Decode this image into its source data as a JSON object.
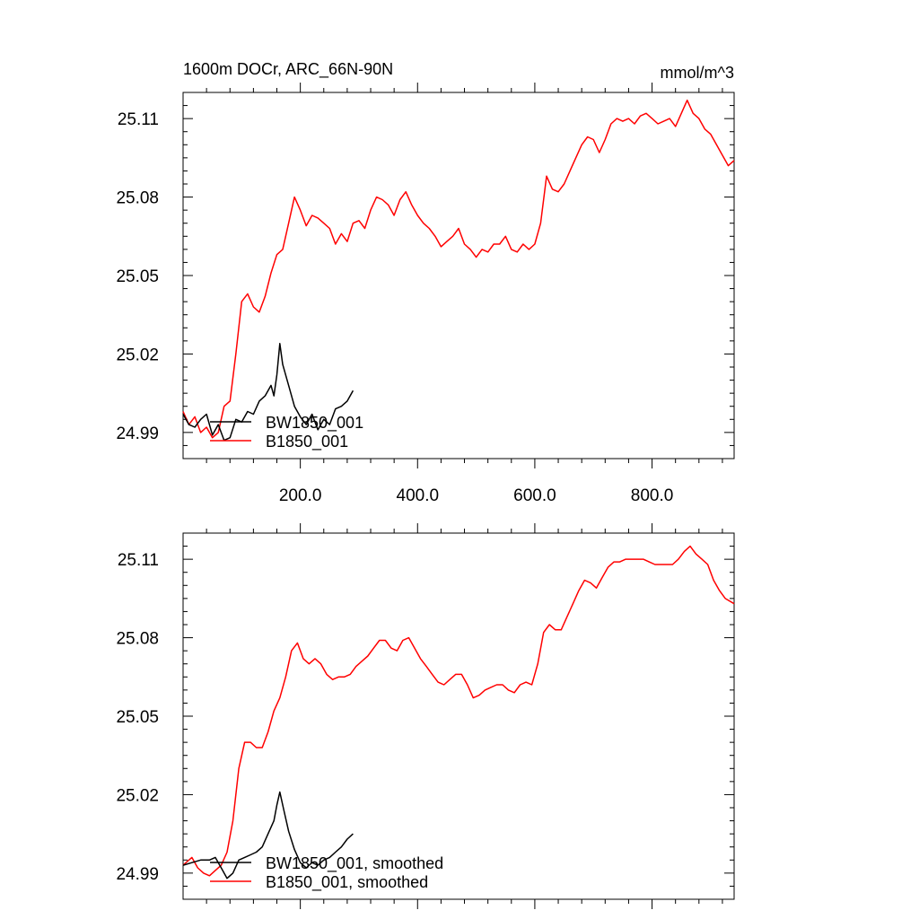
{
  "chart_data": [
    {
      "type": "line",
      "title": "1600m DOCr, ARC_66N-90N",
      "units": "mmol/m^3",
      "xlim": [
        0,
        940
      ],
      "ylim": [
        24.98,
        25.12
      ],
      "x_ticklabels": [
        "200.0",
        "400.0",
        "600.0",
        "800.0"
      ],
      "y_ticklabels": [
        "24.99",
        "25.02",
        "25.05",
        "25.08",
        "25.11"
      ],
      "series": [
        {
          "name": "BW1850_001",
          "color": "#000000",
          "points": [
            [
              0,
              24.997
            ],
            [
              10,
              24.993
            ],
            [
              20,
              24.992
            ],
            [
              30,
              24.995
            ],
            [
              40,
              24.997
            ],
            [
              50,
              24.989
            ],
            [
              60,
              24.993
            ],
            [
              70,
              24.987
            ],
            [
              80,
              24.988
            ],
            [
              90,
              24.995
            ],
            [
              100,
              24.994
            ],
            [
              110,
              24.998
            ],
            [
              120,
              24.997
            ],
            [
              130,
              25.002
            ],
            [
              140,
              25.004
            ],
            [
              150,
              25.008
            ],
            [
              155,
              25.004
            ],
            [
              160,
              25.012
            ],
            [
              165,
              25.024
            ],
            [
              170,
              25.016
            ],
            [
              180,
              25.008
            ],
            [
              190,
              25.0
            ],
            [
              200,
              24.996
            ],
            [
              210,
              24.993
            ],
            [
              220,
              24.997
            ],
            [
              230,
              24.991
            ],
            [
              240,
              24.995
            ],
            [
              250,
              24.993
            ],
            [
              260,
              24.999
            ],
            [
              270,
              25.0
            ],
            [
              280,
              25.002
            ],
            [
              290,
              25.006
            ]
          ]
        },
        {
          "name": "B1850_001",
          "color": "#ff0000",
          "points": [
            [
              0,
              24.998
            ],
            [
              10,
              24.993
            ],
            [
              20,
              24.996
            ],
            [
              30,
              24.99
            ],
            [
              40,
              24.992
            ],
            [
              50,
              24.988
            ],
            [
              60,
              24.99
            ],
            [
              70,
              25.0
            ],
            [
              80,
              25.002
            ],
            [
              90,
              25.02
            ],
            [
              100,
              25.04
            ],
            [
              110,
              25.043
            ],
            [
              120,
              25.038
            ],
            [
              130,
              25.036
            ],
            [
              140,
              25.042
            ],
            [
              150,
              25.051
            ],
            [
              160,
              25.058
            ],
            [
              170,
              25.06
            ],
            [
              180,
              25.07
            ],
            [
              190,
              25.08
            ],
            [
              200,
              25.075
            ],
            [
              210,
              25.069
            ],
            [
              220,
              25.073
            ],
            [
              230,
              25.072
            ],
            [
              240,
              25.07
            ],
            [
              250,
              25.068
            ],
            [
              260,
              25.062
            ],
            [
              270,
              25.066
            ],
            [
              280,
              25.063
            ],
            [
              290,
              25.07
            ],
            [
              300,
              25.071
            ],
            [
              310,
              25.068
            ],
            [
              320,
              25.075
            ],
            [
              330,
              25.08
            ],
            [
              340,
              25.079
            ],
            [
              350,
              25.077
            ],
            [
              360,
              25.073
            ],
            [
              370,
              25.079
            ],
            [
              380,
              25.082
            ],
            [
              390,
              25.077
            ],
            [
              400,
              25.073
            ],
            [
              410,
              25.07
            ],
            [
              420,
              25.068
            ],
            [
              430,
              25.065
            ],
            [
              440,
              25.061
            ],
            [
              450,
              25.063
            ],
            [
              460,
              25.065
            ],
            [
              470,
              25.068
            ],
            [
              480,
              25.062
            ],
            [
              490,
              25.06
            ],
            [
              500,
              25.057
            ],
            [
              510,
              25.06
            ],
            [
              520,
              25.059
            ],
            [
              530,
              25.062
            ],
            [
              540,
              25.062
            ],
            [
              550,
              25.065
            ],
            [
              560,
              25.06
            ],
            [
              570,
              25.059
            ],
            [
              580,
              25.062
            ],
            [
              590,
              25.06
            ],
            [
              600,
              25.062
            ],
            [
              610,
              25.07
            ],
            [
              620,
              25.088
            ],
            [
              630,
              25.083
            ],
            [
              640,
              25.082
            ],
            [
              650,
              25.085
            ],
            [
              660,
              25.09
            ],
            [
              670,
              25.095
            ],
            [
              680,
              25.1
            ],
            [
              690,
              25.103
            ],
            [
              700,
              25.102
            ],
            [
              710,
              25.097
            ],
            [
              720,
              25.102
            ],
            [
              730,
              25.108
            ],
            [
              740,
              25.11
            ],
            [
              750,
              25.109
            ],
            [
              760,
              25.11
            ],
            [
              770,
              25.108
            ],
            [
              780,
              25.111
            ],
            [
              790,
              25.112
            ],
            [
              800,
              25.11
            ],
            [
              810,
              25.108
            ],
            [
              820,
              25.109
            ],
            [
              830,
              25.11
            ],
            [
              840,
              25.107
            ],
            [
              850,
              25.112
            ],
            [
              860,
              25.117
            ],
            [
              870,
              25.112
            ],
            [
              880,
              25.11
            ],
            [
              890,
              25.106
            ],
            [
              900,
              25.104
            ],
            [
              910,
              25.1
            ],
            [
              920,
              25.096
            ],
            [
              930,
              25.092
            ],
            [
              940,
              25.094
            ]
          ]
        }
      ]
    },
    {
      "type": "line",
      "xlim": [
        0,
        940
      ],
      "ylim": [
        24.98,
        25.12
      ],
      "x_ticklabels": [],
      "y_ticklabels": [
        "24.99",
        "25.02",
        "25.05",
        "25.08",
        "25.11"
      ],
      "series": [
        {
          "name": "BW1850_001, smoothed",
          "color": "#000000",
          "points": [
            [
              0,
              24.993
            ],
            [
              15,
              24.994
            ],
            [
              30,
              24.995
            ],
            [
              45,
              24.995
            ],
            [
              55,
              24.996
            ],
            [
              65,
              24.992
            ],
            [
              75,
              24.988
            ],
            [
              85,
              24.99
            ],
            [
              95,
              24.995
            ],
            [
              105,
              24.996
            ],
            [
              115,
              24.997
            ],
            [
              125,
              24.998
            ],
            [
              135,
              25.0
            ],
            [
              145,
              25.005
            ],
            [
              155,
              25.01
            ],
            [
              160,
              25.016
            ],
            [
              165,
              25.021
            ],
            [
              172,
              25.014
            ],
            [
              180,
              25.006
            ],
            [
              190,
              24.999
            ],
            [
              200,
              24.994
            ],
            [
              210,
              24.992
            ],
            [
              220,
              24.994
            ],
            [
              230,
              24.993
            ],
            [
              240,
              24.995
            ],
            [
              250,
              24.996
            ],
            [
              260,
              24.998
            ],
            [
              270,
              25.0
            ],
            [
              280,
              25.003
            ],
            [
              290,
              25.005
            ]
          ]
        },
        {
          "name": "B1850_001, smoothed",
          "color": "#ff0000",
          "points": [
            [
              0,
              24.993
            ],
            [
              15,
              24.996
            ],
            [
              25,
              24.992
            ],
            [
              35,
              24.99
            ],
            [
              45,
              24.989
            ],
            [
              55,
              24.991
            ],
            [
              65,
              24.993
            ],
            [
              75,
              24.998
            ],
            [
              85,
              25.01
            ],
            [
              95,
              25.03
            ],
            [
              105,
              25.04
            ],
            [
              115,
              25.04
            ],
            [
              125,
              25.038
            ],
            [
              135,
              25.038
            ],
            [
              145,
              25.044
            ],
            [
              155,
              25.052
            ],
            [
              165,
              25.057
            ],
            [
              175,
              25.065
            ],
            [
              185,
              25.075
            ],
            [
              195,
              25.078
            ],
            [
              205,
              25.072
            ],
            [
              215,
              25.07
            ],
            [
              225,
              25.072
            ],
            [
              235,
              25.07
            ],
            [
              245,
              25.066
            ],
            [
              255,
              25.064
            ],
            [
              265,
              25.065
            ],
            [
              275,
              25.065
            ],
            [
              285,
              25.066
            ],
            [
              295,
              25.069
            ],
            [
              305,
              25.071
            ],
            [
              315,
              25.073
            ],
            [
              325,
              25.076
            ],
            [
              335,
              25.079
            ],
            [
              345,
              25.079
            ],
            [
              355,
              25.076
            ],
            [
              365,
              25.075
            ],
            [
              375,
              25.079
            ],
            [
              385,
              25.08
            ],
            [
              395,
              25.076
            ],
            [
              405,
              25.072
            ],
            [
              415,
              25.069
            ],
            [
              425,
              25.066
            ],
            [
              435,
              25.063
            ],
            [
              445,
              25.062
            ],
            [
              455,
              25.064
            ],
            [
              465,
              25.066
            ],
            [
              475,
              25.066
            ],
            [
              485,
              25.062
            ],
            [
              495,
              25.057
            ],
            [
              505,
              25.058
            ],
            [
              515,
              25.06
            ],
            [
              525,
              25.061
            ],
            [
              535,
              25.062
            ],
            [
              545,
              25.062
            ],
            [
              555,
              25.06
            ],
            [
              565,
              25.059
            ],
            [
              575,
              25.062
            ],
            [
              585,
              25.063
            ],
            [
              595,
              25.062
            ],
            [
              605,
              25.07
            ],
            [
              615,
              25.082
            ],
            [
              625,
              25.085
            ],
            [
              635,
              25.083
            ],
            [
              645,
              25.083
            ],
            [
              655,
              25.088
            ],
            [
              665,
              25.093
            ],
            [
              675,
              25.098
            ],
            [
              685,
              25.102
            ],
            [
              695,
              25.101
            ],
            [
              705,
              25.099
            ],
            [
              715,
              25.103
            ],
            [
              725,
              25.107
            ],
            [
              735,
              25.109
            ],
            [
              745,
              25.109
            ],
            [
              755,
              25.11
            ],
            [
              765,
              25.11
            ],
            [
              775,
              25.11
            ],
            [
              785,
              25.11
            ],
            [
              795,
              25.109
            ],
            [
              805,
              25.108
            ],
            [
              815,
              25.108
            ],
            [
              825,
              25.108
            ],
            [
              835,
              25.108
            ],
            [
              845,
              25.11
            ],
            [
              855,
              25.113
            ],
            [
              865,
              25.115
            ],
            [
              875,
              25.112
            ],
            [
              885,
              25.11
            ],
            [
              895,
              25.108
            ],
            [
              905,
              25.102
            ],
            [
              915,
              25.098
            ],
            [
              925,
              25.095
            ],
            [
              940,
              25.093
            ]
          ]
        }
      ]
    }
  ]
}
